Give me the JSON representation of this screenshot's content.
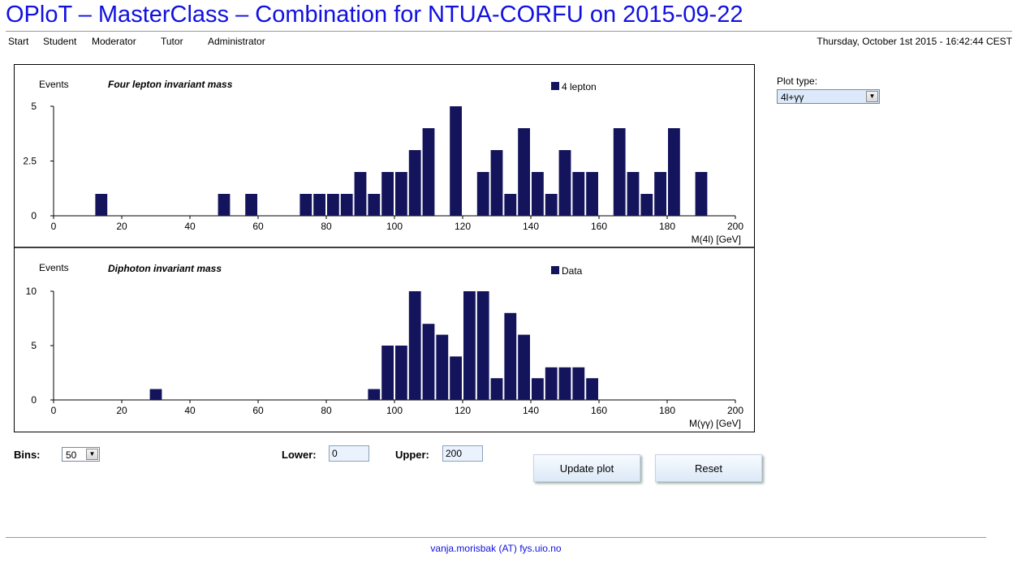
{
  "header": {
    "title": "OPloT – MasterClass – Combination for NTUA-CORFU on 2015-09-22",
    "datetime": "Thursday, October 1st 2015 - 16:42:44 CEST"
  },
  "nav": {
    "items": [
      "Start",
      "Student",
      "Moderator",
      "Tutor",
      "Administrator"
    ]
  },
  "controls": {
    "plot_type_label": "Plot type:",
    "plot_type_value": "4l+γγ",
    "bins_label": "Bins:",
    "bins_value": "50",
    "lower_label": "Lower:",
    "lower_value": "0",
    "upper_label": "Upper:",
    "upper_value": "200",
    "update_button": "Update plot",
    "reset_button": "Reset"
  },
  "footer": {
    "contact": "vanja.morisbak (AT) fys.uio.no"
  },
  "colors": {
    "bar": "#14145c",
    "title": "#1010e0"
  },
  "chart_data": [
    {
      "type": "bar",
      "title": "Four lepton invariant mass",
      "ylabel": "Events",
      "xlabel": "M(4l) [GeV]",
      "legend": "4 lepton",
      "legend_position": "top-right",
      "xlim": [
        0,
        200
      ],
      "ylim": [
        0,
        5
      ],
      "xticks": [
        "0",
        "20",
        "40",
        "60",
        "80",
        "100",
        "120",
        "140",
        "160",
        "180",
        "200"
      ],
      "yticks": [
        "0",
        "2.5",
        "5"
      ],
      "bin_width": 4,
      "bins": [
        {
          "x": 14,
          "y": 1
        },
        {
          "x": 50,
          "y": 1
        },
        {
          "x": 58,
          "y": 1
        },
        {
          "x": 74,
          "y": 1
        },
        {
          "x": 78,
          "y": 1
        },
        {
          "x": 82,
          "y": 1
        },
        {
          "x": 86,
          "y": 1
        },
        {
          "x": 90,
          "y": 2
        },
        {
          "x": 94,
          "y": 1
        },
        {
          "x": 98,
          "y": 2
        },
        {
          "x": 102,
          "y": 2
        },
        {
          "x": 106,
          "y": 3
        },
        {
          "x": 110,
          "y": 4
        },
        {
          "x": 118,
          "y": 5
        },
        {
          "x": 126,
          "y": 2
        },
        {
          "x": 130,
          "y": 3
        },
        {
          "x": 134,
          "y": 1
        },
        {
          "x": 138,
          "y": 4
        },
        {
          "x": 142,
          "y": 2
        },
        {
          "x": 146,
          "y": 1
        },
        {
          "x": 150,
          "y": 3
        },
        {
          "x": 154,
          "y": 2
        },
        {
          "x": 158,
          "y": 2
        },
        {
          "x": 166,
          "y": 4
        },
        {
          "x": 170,
          "y": 2
        },
        {
          "x": 174,
          "y": 1
        },
        {
          "x": 178,
          "y": 2
        },
        {
          "x": 182,
          "y": 4
        },
        {
          "x": 190,
          "y": 2
        }
      ]
    },
    {
      "type": "bar",
      "title": "Diphoton invariant mass",
      "ylabel": "Events",
      "xlabel": "M(γγ) [GeV]",
      "legend": "Data",
      "legend_position": "top-right",
      "xlim": [
        0,
        200
      ],
      "ylim": [
        0,
        10
      ],
      "xticks": [
        "0",
        "20",
        "40",
        "60",
        "80",
        "100",
        "120",
        "140",
        "160",
        "180",
        "200"
      ],
      "yticks": [
        "0",
        "5",
        "10"
      ],
      "bin_width": 4,
      "bins": [
        {
          "x": 30,
          "y": 1
        },
        {
          "x": 94,
          "y": 1
        },
        {
          "x": 98,
          "y": 5
        },
        {
          "x": 102,
          "y": 5
        },
        {
          "x": 106,
          "y": 10
        },
        {
          "x": 110,
          "y": 7
        },
        {
          "x": 114,
          "y": 6
        },
        {
          "x": 118,
          "y": 4
        },
        {
          "x": 122,
          "y": 10
        },
        {
          "x": 126,
          "y": 10
        },
        {
          "x": 130,
          "y": 2
        },
        {
          "x": 134,
          "y": 8
        },
        {
          "x": 138,
          "y": 6
        },
        {
          "x": 142,
          "y": 2
        },
        {
          "x": 146,
          "y": 3
        },
        {
          "x": 150,
          "y": 3
        },
        {
          "x": 154,
          "y": 3
        },
        {
          "x": 158,
          "y": 2
        }
      ]
    }
  ]
}
